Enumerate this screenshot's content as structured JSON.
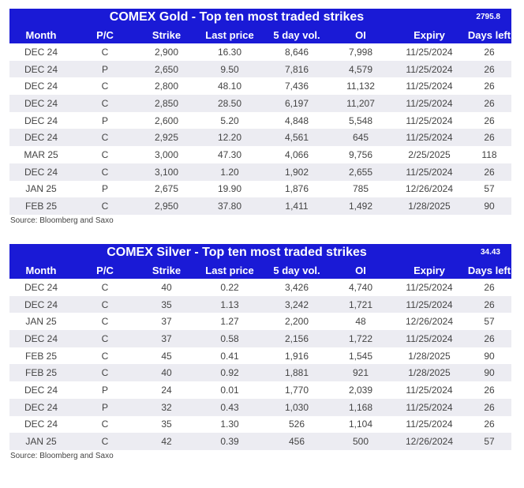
{
  "gold": {
    "title": "COMEX Gold - Top ten most traded strikes",
    "spot": "2795.8",
    "headers": [
      "Month",
      "P/C",
      "Strike",
      "Last price",
      "5 day vol.",
      "OI",
      "Expiry",
      "Days left"
    ],
    "rows": [
      [
        "DEC 24",
        "C",
        "2,900",
        "16.30",
        "8,646",
        "7,998",
        "11/25/2024",
        "26"
      ],
      [
        "DEC 24",
        "P",
        "2,650",
        "9.50",
        "7,816",
        "4,579",
        "11/25/2024",
        "26"
      ],
      [
        "DEC 24",
        "C",
        "2,800",
        "48.10",
        "7,436",
        "11,132",
        "11/25/2024",
        "26"
      ],
      [
        "DEC 24",
        "C",
        "2,850",
        "28.50",
        "6,197",
        "11,207",
        "11/25/2024",
        "26"
      ],
      [
        "DEC 24",
        "P",
        "2,600",
        "5.20",
        "4,848",
        "5,548",
        "11/25/2024",
        "26"
      ],
      [
        "DEC 24",
        "C",
        "2,925",
        "12.20",
        "4,561",
        "645",
        "11/25/2024",
        "26"
      ],
      [
        "MAR 25",
        "C",
        "3,000",
        "47.30",
        "4,066",
        "9,756",
        "2/25/2025",
        "118"
      ],
      [
        "DEC 24",
        "C",
        "3,100",
        "1.20",
        "1,902",
        "2,655",
        "11/25/2024",
        "26"
      ],
      [
        "JAN 25",
        "P",
        "2,675",
        "19.90",
        "1,876",
        "785",
        "12/26/2024",
        "57"
      ],
      [
        "FEB 25",
        "C",
        "2,950",
        "37.80",
        "1,411",
        "1,492",
        "1/28/2025",
        "90"
      ]
    ],
    "source": "Source: Bloomberg and Saxo"
  },
  "silver": {
    "title": "COMEX Silver - Top ten most traded strikes",
    "spot": "34.43",
    "headers": [
      "Month",
      "P/C",
      "Strike",
      "Last price",
      "5 day vol.",
      "OI",
      "Expiry",
      "Days left"
    ],
    "rows": [
      [
        "DEC 24",
        "C",
        "40",
        "0.22",
        "3,426",
        "4,740",
        "11/25/2024",
        "26"
      ],
      [
        "DEC 24",
        "C",
        "35",
        "1.13",
        "3,242",
        "1,721",
        "11/25/2024",
        "26"
      ],
      [
        "JAN 25",
        "C",
        "37",
        "1.27",
        "2,200",
        "48",
        "12/26/2024",
        "57"
      ],
      [
        "DEC 24",
        "C",
        "37",
        "0.58",
        "2,156",
        "1,722",
        "11/25/2024",
        "26"
      ],
      [
        "FEB 25",
        "C",
        "45",
        "0.41",
        "1,916",
        "1,545",
        "1/28/2025",
        "90"
      ],
      [
        "FEB 25",
        "C",
        "40",
        "0.92",
        "1,881",
        "921",
        "1/28/2025",
        "90"
      ],
      [
        "DEC 24",
        "P",
        "24",
        "0.01",
        "1,770",
        "2,039",
        "11/25/2024",
        "26"
      ],
      [
        "DEC 24",
        "P",
        "32",
        "0.43",
        "1,030",
        "1,168",
        "11/25/2024",
        "26"
      ],
      [
        "DEC 24",
        "C",
        "35",
        "1.30",
        "526",
        "1,104",
        "11/25/2024",
        "26"
      ],
      [
        "JAN 25",
        "C",
        "42",
        "0.39",
        "456",
        "500",
        "12/26/2024",
        "57"
      ]
    ],
    "source": "Source: Bloomberg and Saxo"
  }
}
